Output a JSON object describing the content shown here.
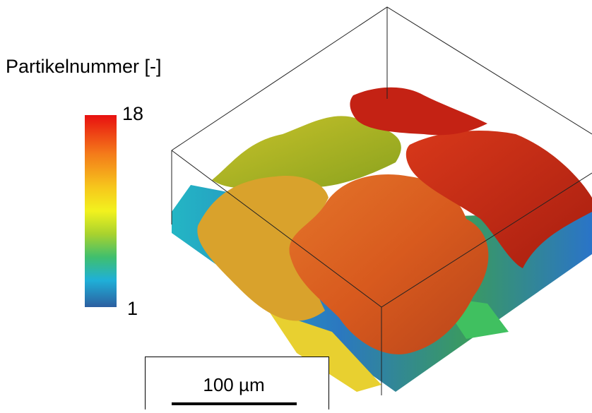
{
  "colorbar": {
    "title": "Partikelnummer [-]",
    "max": 18,
    "min": 1
  },
  "scale_bar": {
    "label": "100 µm"
  }
}
